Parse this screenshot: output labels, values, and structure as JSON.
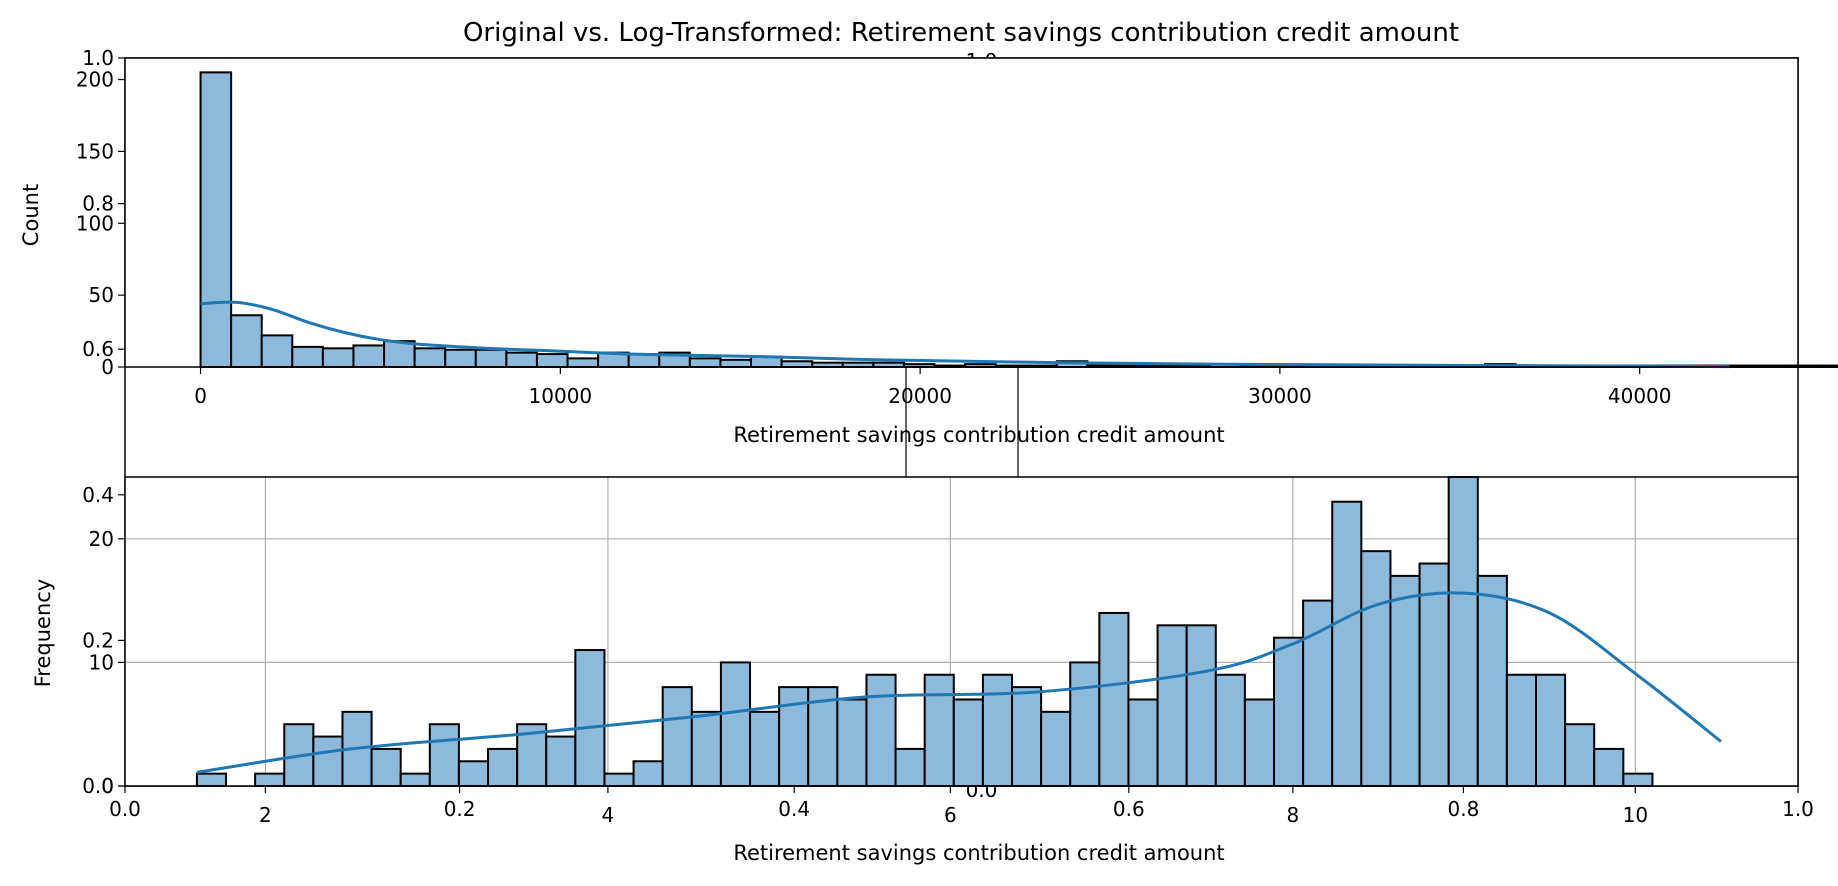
{
  "title": "Original vs. Log-Transformed: Retirement savings contribution credit amount",
  "colors": {
    "bar_fill": "#8db9db",
    "bar_edge": "#000000",
    "kde_line": "#1f77b4",
    "grid": "#b0b0b0",
    "axes": "#000000"
  },
  "background_axes": {
    "ticks_left": [
      "0.0",
      "0.2",
      "0.4",
      "0.6",
      "0.8",
      "1.0"
    ],
    "ticks_bottom": [
      "0.0",
      "0.2",
      "0.4",
      "0.6",
      "0.8",
      "1.0"
    ]
  },
  "chart_data": [
    {
      "type": "bar",
      "name": "original-histogram",
      "xlabel": "Retirement savings contribution credit amount",
      "ylabel": "Count",
      "xlim": [
        -2100,
        44400
      ],
      "ylim": [
        0,
        215
      ],
      "xticks": [
        0,
        10000,
        20000,
        30000,
        40000
      ],
      "yticks": [
        0,
        50,
        100,
        150,
        200
      ],
      "grid": false,
      "bin_start": 0,
      "bin_width": 850,
      "values": [
        205,
        36,
        22,
        14,
        13,
        15,
        18,
        13,
        12,
        12,
        10,
        9,
        6,
        10,
        9,
        10,
        6,
        5,
        7,
        4,
        3,
        3,
        3,
        2,
        1,
        2,
        1,
        1,
        4,
        1,
        1,
        1,
        1,
        2,
        1,
        1,
        1,
        1,
        1,
        1,
        1,
        1,
        2,
        1,
        1,
        1,
        1,
        1,
        1,
        1,
        1,
        1,
        1,
        1,
        1,
        1,
        1,
        2,
        1,
        1,
        1,
        1,
        1,
        1,
        1,
        1,
        1,
        1,
        1,
        1,
        1,
        1,
        1,
        1,
        1,
        1,
        1,
        1,
        1,
        1,
        1,
        1,
        1,
        1,
        1,
        1,
        1,
        1,
        1,
        1,
        1,
        1,
        1,
        1,
        1,
        1,
        1,
        1,
        1,
        1
      ],
      "kde": {
        "x": [
          0,
          1000,
          2000,
          3000,
          4000,
          5000,
          6000,
          8000,
          10000,
          12000,
          14000,
          16000,
          18000,
          20000,
          24000,
          28000,
          32000,
          36000,
          40000,
          42500
        ],
        "y": [
          44,
          45,
          40,
          31,
          24,
          19,
          16,
          13,
          11,
          9,
          8,
          7,
          5.5,
          4.5,
          3,
          2,
          1.5,
          1,
          0.6,
          0.3
        ]
      }
    },
    {
      "type": "bar",
      "name": "log-transformed-histogram",
      "xlabel": "Retirement savings contribution credit amount",
      "ylabel": "Frequency",
      "xlim": [
        1.18,
        10.95
      ],
      "ylim": [
        0,
        25
      ],
      "xticks": [
        2,
        4,
        6,
        8,
        10
      ],
      "yticks": [
        0,
        10,
        20
      ],
      "grid": true,
      "bin_start": 1.6,
      "bin_width": 0.17,
      "values": [
        1,
        0,
        1,
        5,
        4,
        6,
        3,
        1,
        5,
        2,
        3,
        5,
        4,
        11,
        1,
        2,
        8,
        6,
        10,
        6,
        8,
        8,
        7,
        9,
        3,
        9,
        7,
        9,
        8,
        6,
        10,
        14,
        7,
        13,
        13,
        9,
        7,
        12,
        15,
        23,
        19,
        17,
        18,
        25,
        17,
        9,
        9,
        5,
        3,
        1
      ],
      "kde": {
        "x": [
          1.6,
          2.5,
          3.5,
          4.5,
          5.5,
          6.5,
          7.5,
          8.0,
          8.5,
          9.0,
          9.5,
          10.0,
          10.5
        ],
        "y": [
          1.1,
          3.0,
          4.2,
          5.6,
          7.2,
          7.6,
          9.3,
          11.5,
          14.7,
          15.6,
          14.0,
          9.1,
          3.6
        ]
      }
    }
  ]
}
